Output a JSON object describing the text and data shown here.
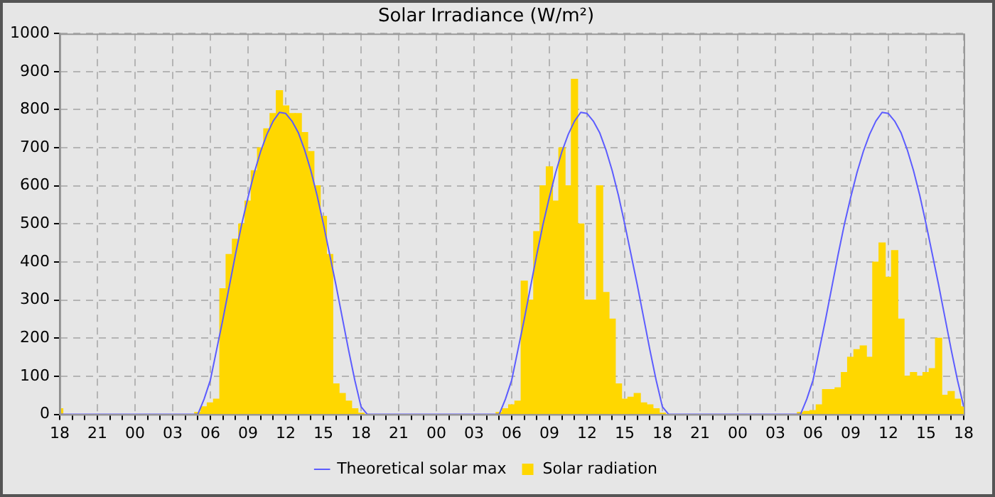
{
  "chart_data": {
    "type": "bar",
    "title": "Solar Irradiance (W/m²)",
    "ylim": [
      0,
      1000
    ],
    "yticks": [
      0,
      100,
      200,
      300,
      400,
      500,
      600,
      700,
      800,
      900,
      1000
    ],
    "categories": [
      "18",
      null,
      null,
      null,
      null,
      null,
      "21",
      null,
      null,
      null,
      null,
      null,
      "00",
      null,
      null,
      null,
      null,
      null,
      "03",
      null,
      null,
      null,
      null,
      null,
      "06",
      null,
      null,
      null,
      null,
      null,
      "09",
      null,
      null,
      null,
      null,
      null,
      "12",
      null,
      null,
      null,
      null,
      null,
      "15",
      null,
      null,
      null,
      null,
      null,
      "18",
      null,
      null,
      null,
      null,
      null,
      "21",
      null,
      null,
      null,
      null,
      null,
      "00",
      null,
      null,
      null,
      null,
      null,
      "03",
      null,
      null,
      null,
      null,
      null,
      "06",
      null,
      null,
      null,
      null,
      null,
      "09",
      null,
      null,
      null,
      null,
      null,
      "12",
      null,
      null,
      null,
      null,
      null,
      "15",
      null,
      null,
      null,
      null,
      null,
      "18",
      null,
      null,
      null,
      null,
      null,
      "21",
      null,
      null,
      null,
      null,
      null,
      "00",
      null,
      null,
      null,
      null,
      null,
      "03",
      null,
      null,
      null,
      null,
      null,
      "06",
      null,
      null,
      null,
      null,
      null,
      "09",
      null,
      null,
      null,
      null,
      null,
      "12",
      null,
      null,
      null,
      null,
      null,
      "15",
      null,
      null,
      null,
      null,
      null,
      "18"
    ],
    "grid": true,
    "legend": "bottom",
    "series": [
      {
        "name": "Theoretical solar max",
        "type": "line",
        "color": "#5c5cff",
        "marker": "none",
        "line_style": "solid",
        "values": [
          0,
          0,
          0,
          0,
          0,
          0,
          0,
          0,
          0,
          0,
          0,
          0,
          0,
          0,
          0,
          0,
          0,
          0,
          0,
          0,
          0,
          0,
          0,
          40,
          90,
          170,
          250,
          335,
          420,
          500,
          570,
          635,
          690,
          735,
          770,
          793,
          790,
          770,
          740,
          695,
          640,
          575,
          500,
          420,
          340,
          255,
          170,
          90,
          20,
          0,
          0,
          0,
          0,
          0,
          0,
          0,
          0,
          0,
          0,
          0,
          0,
          0,
          0,
          0,
          0,
          0,
          0,
          0,
          0,
          0,
          0,
          40,
          90,
          170,
          250,
          335,
          420,
          500,
          570,
          635,
          690,
          735,
          770,
          793,
          790,
          770,
          740,
          695,
          640,
          575,
          500,
          420,
          340,
          255,
          170,
          90,
          20,
          0,
          0,
          0,
          0,
          0,
          0,
          0,
          0,
          0,
          0,
          0,
          0,
          0,
          0,
          0,
          0,
          0,
          0,
          0,
          0,
          0,
          0,
          40,
          90,
          170,
          250,
          335,
          420,
          500,
          570,
          635,
          690,
          735,
          770,
          793,
          790,
          770,
          740,
          695,
          640,
          575,
          500,
          420,
          340,
          255,
          170,
          90,
          20
        ]
      },
      {
        "name": "Solar radiation",
        "color": "#ffd700",
        "values": [
          15,
          0,
          0,
          0,
          0,
          0,
          0,
          0,
          0,
          0,
          0,
          0,
          0,
          0,
          0,
          0,
          0,
          0,
          0,
          0,
          0,
          0,
          5,
          20,
          30,
          40,
          330,
          420,
          460,
          500,
          560,
          640,
          700,
          750,
          790,
          850,
          810,
          790,
          790,
          740,
          690,
          600,
          520,
          420,
          80,
          55,
          35,
          15,
          3,
          0,
          0,
          0,
          0,
          0,
          0,
          0,
          0,
          0,
          0,
          0,
          0,
          0,
          0,
          0,
          0,
          0,
          0,
          0,
          0,
          0,
          5,
          15,
          25,
          35,
          350,
          300,
          480,
          600,
          650,
          560,
          700,
          600,
          880,
          500,
          300,
          300,
          600,
          320,
          250,
          80,
          40,
          45,
          55,
          30,
          25,
          15,
          3,
          0,
          0,
          0,
          0,
          0,
          0,
          0,
          0,
          0,
          0,
          0,
          0,
          0,
          0,
          0,
          0,
          0,
          0,
          0,
          0,
          0,
          5,
          8,
          10,
          25,
          65,
          65,
          70,
          110,
          150,
          170,
          180,
          150,
          400,
          450,
          360,
          430,
          250,
          100,
          110,
          100,
          110,
          120,
          200,
          50,
          60,
          40,
          20
        ]
      }
    ]
  }
}
